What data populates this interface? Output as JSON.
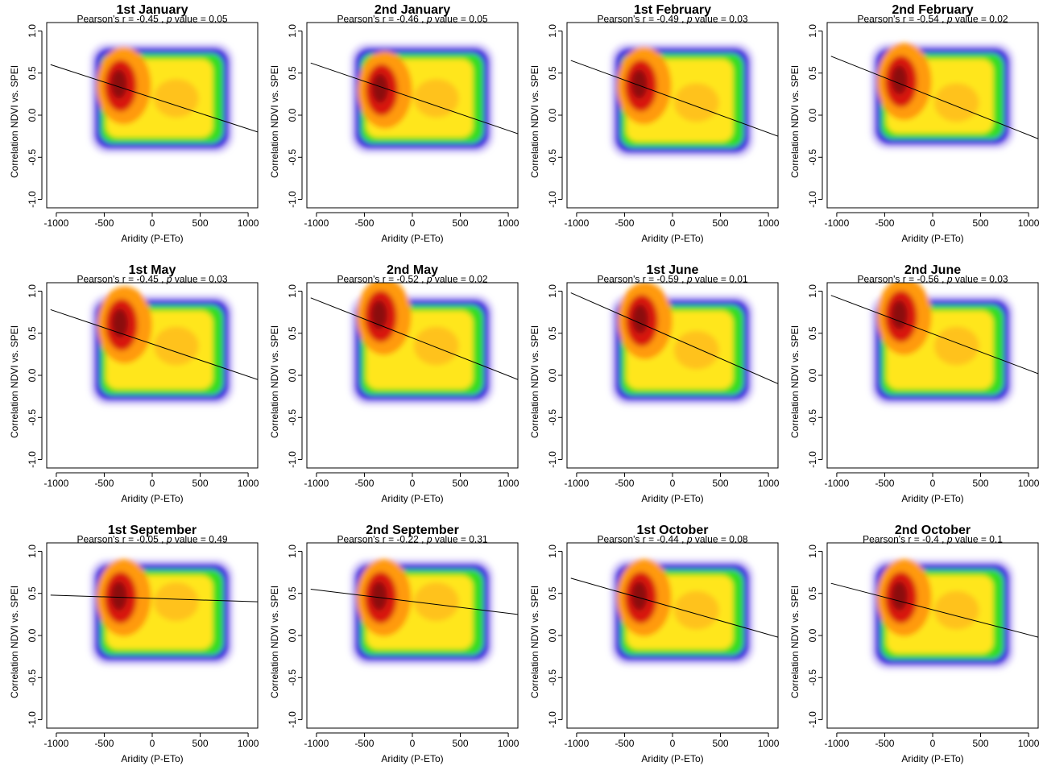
{
  "chart_data": [
    {
      "type": "heatmap",
      "title": "1st January",
      "stats": {
        "r_prefix": "Pearson's r = ",
        "r": "-0.45",
        "p_prefix": " , ",
        "p_sym": "p",
        "p_suffix": " value = ",
        "p": "0.05"
      },
      "xlabel": "Aridity (P-ETo)",
      "ylabel": "Correlation NDVI vs. SPEI",
      "xlim": [
        -1000,
        1000
      ],
      "ylim": [
        -1,
        1
      ],
      "xticks": [
        "-1000",
        "-500",
        "0",
        "500",
        "1000"
      ],
      "yticks": [
        "-1.0",
        "-0.5",
        "0.0",
        "0.5",
        "1.0"
      ],
      "trend_line": {
        "x": [
          -1060,
          1100
        ],
        "y": [
          0.6,
          -0.2
        ]
      },
      "density_hotspot": {
        "x": -330,
        "y": 0.35
      },
      "density_secondary": {
        "x": 250,
        "y": 0.2
      },
      "density_extent": {
        "x": [
          -600,
          800
        ],
        "y": [
          -0.4,
          0.8
        ]
      }
    },
    {
      "type": "heatmap",
      "title": "2nd January",
      "stats": {
        "r_prefix": "Pearson's r = ",
        "r": "-0.46",
        "p_prefix": " , ",
        "p_sym": "p",
        "p_suffix": " value = ",
        "p": "0.05"
      },
      "xlabel": "Aridity (P-ETo)",
      "ylabel": "Correlation NDVI vs. SPEI",
      "xlim": [
        -1000,
        1000
      ],
      "ylim": [
        -1,
        1
      ],
      "xticks": [
        "-1000",
        "-500",
        "0",
        "500",
        "1000"
      ],
      "yticks": [
        "-1.0",
        "-0.5",
        "0.0",
        "0.5",
        "1.0"
      ],
      "trend_line": {
        "x": [
          -1060,
          1100
        ],
        "y": [
          0.62,
          -0.22
        ]
      },
      "density_hotspot": {
        "x": -320,
        "y": 0.3
      },
      "density_secondary": {
        "x": 250,
        "y": 0.2
      },
      "density_extent": {
        "x": [
          -600,
          800
        ],
        "y": [
          -0.4,
          0.8
        ]
      }
    },
    {
      "type": "heatmap",
      "title": "1st February",
      "stats": {
        "r_prefix": "Pearson's r = ",
        "r": "-0.49",
        "p_prefix": " , ",
        "p_sym": "p",
        "p_suffix": " value = ",
        "p": "0.03"
      },
      "xlabel": "Aridity (P-ETo)",
      "ylabel": "Correlation NDVI vs. SPEI",
      "xlim": [
        -1000,
        1000
      ],
      "ylim": [
        -1,
        1
      ],
      "xticks": [
        "-1000",
        "-500",
        "0",
        "500",
        "1000"
      ],
      "yticks": [
        "-1.0",
        "-0.5",
        "0.0",
        "0.5",
        "1.0"
      ],
      "trend_line": {
        "x": [
          -1060,
          1100
        ],
        "y": [
          0.65,
          -0.25
        ]
      },
      "density_hotspot": {
        "x": -330,
        "y": 0.35
      },
      "density_secondary": {
        "x": 250,
        "y": 0.15
      },
      "density_extent": {
        "x": [
          -600,
          800
        ],
        "y": [
          -0.45,
          0.8
        ]
      }
    },
    {
      "type": "heatmap",
      "title": "2nd February",
      "stats": {
        "r_prefix": "Pearson's r = ",
        "r": "-0.54",
        "p_prefix": " , ",
        "p_sym": "p",
        "p_suffix": " value = ",
        "p": "0.02"
      },
      "xlabel": "Aridity (P-ETo)",
      "ylabel": "Correlation NDVI vs. SPEI",
      "xlim": [
        -1000,
        1000
      ],
      "ylim": [
        -1,
        1
      ],
      "xticks": [
        "-1000",
        "-500",
        "0",
        "500",
        "1000"
      ],
      "yticks": [
        "-1.0",
        "-0.5",
        "0.0",
        "0.5",
        "1.0"
      ],
      "trend_line": {
        "x": [
          -1060,
          1100
        ],
        "y": [
          0.7,
          -0.28
        ]
      },
      "density_hotspot": {
        "x": -330,
        "y": 0.4
      },
      "density_secondary": {
        "x": 250,
        "y": 0.15
      },
      "density_extent": {
        "x": [
          -600,
          800
        ],
        "y": [
          -0.35,
          0.8
        ]
      }
    },
    {
      "type": "heatmap",
      "title": "1st May",
      "stats": {
        "r_prefix": "Pearson's r = ",
        "r": "-0.45",
        "p_prefix": " , ",
        "p_sym": "p",
        "p_suffix": " value = ",
        "p": "0.03"
      },
      "xlabel": "Aridity (P-ETo)",
      "ylabel": "Correlation NDVI vs. SPEI",
      "xlim": [
        -1000,
        1000
      ],
      "ylim": [
        -1,
        1
      ],
      "xticks": [
        "-1000",
        "-500",
        "0",
        "500",
        "1000"
      ],
      "yticks": [
        "-1.0",
        "-0.5",
        "0.0",
        "0.5",
        "1.0"
      ],
      "trend_line": {
        "x": [
          -1060,
          1100
        ],
        "y": [
          0.78,
          -0.05
        ]
      },
      "density_hotspot": {
        "x": -320,
        "y": 0.6
      },
      "density_secondary": {
        "x": 250,
        "y": 0.35
      },
      "density_extent": {
        "x": [
          -600,
          800
        ],
        "y": [
          -0.3,
          0.9
        ]
      }
    },
    {
      "type": "heatmap",
      "title": "2nd May",
      "stats": {
        "r_prefix": "Pearson's r = ",
        "r": "-0.52",
        "p_prefix": " , ",
        "p_sym": "p",
        "p_suffix": " value = ",
        "p": "0.02"
      },
      "xlabel": "Aridity (P-ETo)",
      "ylabel": "Correlation NDVI vs. SPEI",
      "xlim": [
        -1000,
        1000
      ],
      "ylim": [
        -1,
        1
      ],
      "xticks": [
        "-1000",
        "-500",
        "0",
        "500",
        "1000"
      ],
      "yticks": [
        "-1.0",
        "-0.5",
        "0.0",
        "0.5",
        "1.0"
      ],
      "trend_line": {
        "x": [
          -1060,
          1100
        ],
        "y": [
          0.92,
          -0.05
        ]
      },
      "density_hotspot": {
        "x": -330,
        "y": 0.7
      },
      "density_secondary": {
        "x": 250,
        "y": 0.35
      },
      "density_extent": {
        "x": [
          -600,
          800
        ],
        "y": [
          -0.3,
          0.9
        ]
      }
    },
    {
      "type": "heatmap",
      "title": "1st June",
      "stats": {
        "r_prefix": "Pearson's r = ",
        "r": "-0.59",
        "p_prefix": " , ",
        "p_sym": "p",
        "p_suffix": " value = ",
        "p": "0.01"
      },
      "xlabel": "Aridity (P-ETo)",
      "ylabel": "Correlation NDVI vs. SPEI",
      "xlim": [
        -1000,
        1000
      ],
      "ylim": [
        -1,
        1
      ],
      "xticks": [
        "-1000",
        "-500",
        "0",
        "500",
        "1000"
      ],
      "yticks": [
        "-1.0",
        "-0.5",
        "0.0",
        "0.5",
        "1.0"
      ],
      "trend_line": {
        "x": [
          -1060,
          1100
        ],
        "y": [
          0.98,
          -0.1
        ]
      },
      "density_hotspot": {
        "x": -320,
        "y": 0.65
      },
      "density_secondary": {
        "x": 250,
        "y": 0.3
      },
      "density_extent": {
        "x": [
          -600,
          800
        ],
        "y": [
          -0.3,
          0.9
        ]
      }
    },
    {
      "type": "heatmap",
      "title": "2nd June",
      "stats": {
        "r_prefix": "Pearson's r = ",
        "r": "-0.56",
        "p_prefix": " , ",
        "p_sym": "p",
        "p_suffix": " value = ",
        "p": "0.03"
      },
      "xlabel": "Aridity (P-ETo)",
      "ylabel": "Correlation NDVI vs. SPEI",
      "xlim": [
        -1000,
        1000
      ],
      "ylim": [
        -1,
        1
      ],
      "xticks": [
        "-1000",
        "-500",
        "0",
        "500",
        "1000"
      ],
      "yticks": [
        "-1.0",
        "-0.5",
        "0.0",
        "0.5",
        "1.0"
      ],
      "trend_line": {
        "x": [
          -1060,
          1100
        ],
        "y": [
          0.95,
          0.02
        ]
      },
      "density_hotspot": {
        "x": -330,
        "y": 0.7
      },
      "density_secondary": {
        "x": 250,
        "y": 0.35
      },
      "density_extent": {
        "x": [
          -600,
          800
        ],
        "y": [
          -0.3,
          0.9
        ]
      }
    },
    {
      "type": "heatmap",
      "title": "1st September",
      "stats": {
        "r_prefix": "Pearson's r = ",
        "r": "-0.05",
        "p_prefix": " , ",
        "p_sym": "p",
        "p_suffix": " value = ",
        "p": "0.49"
      },
      "xlabel": "Aridity (P-ETo)",
      "ylabel": "Correlation NDVI vs. SPEI",
      "xlim": [
        -1000,
        1000
      ],
      "ylim": [
        -1,
        1
      ],
      "xticks": [
        "-1000",
        "-500",
        "0",
        "500",
        "1000"
      ],
      "yticks": [
        "-1.0",
        "-0.5",
        "0.0",
        "0.5",
        "1.0"
      ],
      "trend_line": {
        "x": [
          -1060,
          1100
        ],
        "y": [
          0.48,
          0.4
        ]
      },
      "density_hotspot": {
        "x": -330,
        "y": 0.45
      },
      "density_secondary": {
        "x": 250,
        "y": 0.4
      },
      "density_extent": {
        "x": [
          -600,
          800
        ],
        "y": [
          -0.3,
          0.85
        ]
      }
    },
    {
      "type": "heatmap",
      "title": "2nd September",
      "stats": {
        "r_prefix": "Pearson's r = ",
        "r": "-0.22",
        "p_prefix": " , ",
        "p_sym": "p",
        "p_suffix": " value = ",
        "p": "0.31"
      },
      "xlabel": "Aridity (P-ETo)",
      "ylabel": "Correlation NDVI vs. SPEI",
      "xlim": [
        -1000,
        1000
      ],
      "ylim": [
        -1,
        1
      ],
      "xticks": [
        "-1000",
        "-500",
        "0",
        "500",
        "1000"
      ],
      "yticks": [
        "-1.0",
        "-0.5",
        "0.0",
        "0.5",
        "1.0"
      ],
      "trend_line": {
        "x": [
          -1060,
          1100
        ],
        "y": [
          0.55,
          0.25
        ]
      },
      "density_hotspot": {
        "x": -330,
        "y": 0.45
      },
      "density_secondary": {
        "x": 250,
        "y": 0.4
      },
      "density_extent": {
        "x": [
          -600,
          800
        ],
        "y": [
          -0.3,
          0.85
        ]
      }
    },
    {
      "type": "heatmap",
      "title": "1st October",
      "stats": {
        "r_prefix": "Pearson's r = ",
        "r": "-0.44",
        "p_prefix": " , ",
        "p_sym": "p",
        "p_suffix": " value = ",
        "p": "0.08"
      },
      "xlabel": "Aridity (P-ETo)",
      "ylabel": "Correlation NDVI vs. SPEI",
      "xlim": [
        -1000,
        1000
      ],
      "ylim": [
        -1,
        1
      ],
      "xticks": [
        "-1000",
        "-500",
        "0",
        "500",
        "1000"
      ],
      "yticks": [
        "-1.0",
        "-0.5",
        "0.0",
        "0.5",
        "1.0"
      ],
      "trend_line": {
        "x": [
          -1060,
          1100
        ],
        "y": [
          0.68,
          -0.02
        ]
      },
      "density_hotspot": {
        "x": -330,
        "y": 0.45
      },
      "density_secondary": {
        "x": 250,
        "y": 0.3
      },
      "density_extent": {
        "x": [
          -600,
          800
        ],
        "y": [
          -0.3,
          0.85
        ]
      }
    },
    {
      "type": "heatmap",
      "title": "2nd October",
      "stats": {
        "r_prefix": "Pearson's r = ",
        "r": "-0.4",
        "p_prefix": " , ",
        "p_sym": "p",
        "p_suffix": " value = ",
        "p": "0.1"
      },
      "xlabel": "Aridity (P-ETo)",
      "ylabel": "Correlation NDVI vs. SPEI",
      "xlim": [
        -1000,
        1000
      ],
      "ylim": [
        -1,
        1
      ],
      "xticks": [
        "-1000",
        "-500",
        "0",
        "500",
        "1000"
      ],
      "yticks": [
        "-1.0",
        "-0.5",
        "0.0",
        "0.5",
        "1.0"
      ],
      "trend_line": {
        "x": [
          -1060,
          1100
        ],
        "y": [
          0.62,
          -0.02
        ]
      },
      "density_hotspot": {
        "x": -330,
        "y": 0.45
      },
      "density_secondary": {
        "x": 250,
        "y": 0.3
      },
      "density_extent": {
        "x": [
          -600,
          800
        ],
        "y": [
          -0.35,
          0.85
        ]
      }
    }
  ],
  "colors": {
    "outer": "#3a1fe0",
    "green": "#33dd22",
    "yellow": "#ffe61a",
    "orange": "#ff9a10",
    "red": "#d8160f",
    "dark_red": "#8b0a08",
    "trend": "#000000"
  }
}
